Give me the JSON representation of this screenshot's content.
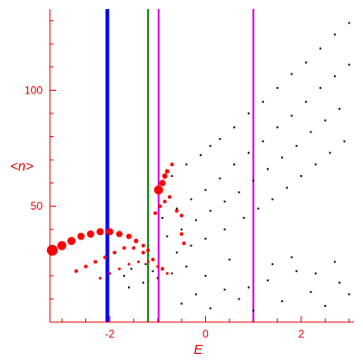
{
  "chart_data": {
    "type": "scatter",
    "title": "",
    "xlabel": "E",
    "ylabel": "<n>",
    "xlim": [
      -3.25,
      3.1
    ],
    "ylim": [
      0,
      135
    ],
    "x_ticks": [
      -2,
      0,
      2
    ],
    "x_tick_labels": [
      "-2",
      "0",
      "2"
    ],
    "y_ticks": [
      50,
      100
    ],
    "y_tick_labels": [
      "50",
      "100"
    ],
    "grid": false,
    "legend": "none",
    "colors": {
      "axis": "#e00000",
      "eigenstates": "#000000",
      "highlight": "#ff0000",
      "line_blue": "#0000ff",
      "line_green": "#008000",
      "line_magenta": "#dd00dd"
    },
    "vertical_lines": [
      {
        "x": -2.05,
        "color": "#0000ff",
        "width": 4
      },
      {
        "x": -1.2,
        "color": "#008000",
        "width": 2
      },
      {
        "x": -0.98,
        "color": "#dd00dd",
        "width": 2
      },
      {
        "x": 1.0,
        "color": "#dd00dd",
        "width": 2
      }
    ],
    "series": [
      {
        "marker": "small-black",
        "points": [
          [
            -1.0,
            58
          ],
          [
            -0.7,
            63
          ],
          [
            -0.4,
            68
          ],
          [
            -0.1,
            72
          ],
          [
            0.1,
            76
          ],
          [
            0.3,
            79
          ],
          [
            0.6,
            84
          ],
          [
            0.9,
            90
          ],
          [
            1.2,
            95
          ],
          [
            1.5,
            101
          ],
          [
            1.8,
            107
          ],
          [
            2.1,
            112
          ],
          [
            2.4,
            118
          ],
          [
            2.7,
            124
          ],
          [
            3.0,
            129
          ],
          [
            -0.9,
            45
          ],
          [
            -0.6,
            49
          ],
          [
            -0.3,
            53
          ],
          [
            0.0,
            57
          ],
          [
            0.3,
            62
          ],
          [
            0.6,
            68
          ],
          [
            0.9,
            73
          ],
          [
            1.2,
            78
          ],
          [
            1.5,
            84
          ],
          [
            1.8,
            89
          ],
          [
            2.1,
            95
          ],
          [
            2.4,
            101
          ],
          [
            2.7,
            106
          ],
          [
            3.0,
            111
          ],
          [
            -0.8,
            37
          ],
          [
            -0.5,
            40
          ],
          [
            -0.2,
            44
          ],
          [
            0.1,
            48
          ],
          [
            0.4,
            52
          ],
          [
            0.7,
            56
          ],
          [
            1.0,
            61
          ],
          [
            1.3,
            66
          ],
          [
            1.6,
            71
          ],
          [
            1.9,
            76
          ],
          [
            2.2,
            82
          ],
          [
            2.5,
            87
          ],
          [
            2.8,
            92
          ],
          [
            -0.6,
            30
          ],
          [
            -0.3,
            33
          ],
          [
            0.0,
            36
          ],
          [
            0.4,
            40
          ],
          [
            0.8,
            45
          ],
          [
            1.1,
            49
          ],
          [
            1.4,
            53
          ],
          [
            1.7,
            58
          ],
          [
            2.0,
            63
          ],
          [
            2.3,
            68
          ],
          [
            2.6,
            73
          ],
          [
            2.9,
            78
          ],
          [
            -1.55,
            23
          ],
          [
            -1.4,
            26
          ],
          [
            -1.25,
            25
          ],
          [
            -1.7,
            20
          ],
          [
            -1.1,
            22
          ],
          [
            -1.6,
            15
          ],
          [
            -1.3,
            17
          ],
          [
            -1.0,
            19
          ],
          [
            -0.7,
            21
          ],
          [
            -0.5,
            8
          ],
          [
            -0.2,
            12
          ],
          [
            0.1,
            6
          ],
          [
            0.4,
            14
          ],
          [
            0.7,
            10
          ],
          [
            1.0,
            5
          ],
          [
            1.3,
            18
          ],
          [
            1.6,
            9
          ],
          [
            1.9,
            22
          ],
          [
            2.2,
            13
          ],
          [
            2.5,
            7
          ],
          [
            2.8,
            17
          ],
          [
            -0.4,
            24
          ],
          [
            0.0,
            20
          ],
          [
            0.5,
            27
          ],
          [
            0.9,
            15
          ],
          [
            1.4,
            25
          ],
          [
            1.8,
            28
          ],
          [
            2.3,
            21
          ],
          [
            2.7,
            26
          ],
          [
            3.0,
            12
          ]
        ]
      },
      {
        "marker": "red-curve",
        "points": [
          [
            -3.2,
            31,
            6
          ],
          [
            -3.0,
            33,
            5
          ],
          [
            -2.8,
            35,
            4.5
          ],
          [
            -2.6,
            37,
            4
          ],
          [
            -2.4,
            38,
            4
          ],
          [
            -2.2,
            39,
            4
          ],
          [
            -2.0,
            39,
            4
          ],
          [
            -1.8,
            38,
            3.5
          ],
          [
            -1.6,
            37,
            3
          ],
          [
            -1.45,
            35,
            2.5
          ],
          [
            -1.3,
            33,
            2
          ],
          [
            -1.2,
            31,
            2
          ],
          [
            -2.7,
            22,
            2
          ],
          [
            -2.5,
            24,
            2
          ],
          [
            -2.3,
            26,
            2
          ],
          [
            -2.1,
            28,
            2
          ],
          [
            -1.9,
            30,
            2
          ],
          [
            -1.7,
            32,
            2
          ],
          [
            -1.5,
            32,
            2
          ],
          [
            -1.3,
            30,
            2
          ],
          [
            -1.1,
            27,
            2
          ],
          [
            -0.9,
            23,
            2
          ],
          [
            -2.2,
            19,
            1.5
          ],
          [
            -2.0,
            21,
            1.5
          ],
          [
            -1.8,
            23,
            1.5
          ],
          [
            -1.6,
            25,
            1.5
          ],
          [
            -1.4,
            26,
            1.5
          ],
          [
            -1.2,
            26,
            1.5
          ],
          [
            -1.0,
            24,
            1.5
          ],
          [
            -0.8,
            21,
            1.5
          ],
          [
            -0.98,
            57,
            5
          ],
          [
            -0.9,
            60,
            3.5
          ],
          [
            -0.85,
            63,
            3
          ],
          [
            -0.8,
            65,
            2.5
          ],
          [
            -0.7,
            68,
            2
          ],
          [
            -1.05,
            47,
            2
          ],
          [
            -0.95,
            50,
            2
          ],
          [
            -0.85,
            52,
            2
          ],
          [
            -0.75,
            54,
            2
          ],
          [
            -0.6,
            48,
            2
          ],
          [
            -0.5,
            46,
            2
          ],
          [
            -0.5,
            38,
            2
          ],
          [
            -0.45,
            34,
            2
          ]
        ]
      }
    ]
  }
}
